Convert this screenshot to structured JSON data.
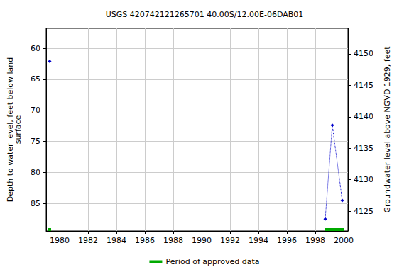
{
  "chart_data": {
    "type": "scatter",
    "title": "USGS 420742121265701 40.00S/12.00E-06DAB01",
    "x_label": null,
    "y_label": "Depth to water level, feet below land\nsurface",
    "y2_label": "Groundwater level above NGVD 1929, feet",
    "xlim": [
      1979.05,
      2000.3
    ],
    "xticks": [
      1980,
      1982,
      1984,
      1986,
      1988,
      1990,
      1992,
      1994,
      1996,
      1998,
      2000
    ],
    "ylim": [
      56.8,
      89.4
    ],
    "yticks": [
      60,
      65,
      70,
      75,
      80,
      85
    ],
    "y2lim": [
      4121.85,
      4154.05
    ],
    "y2ticks": [
      4125,
      4130,
      4135,
      4140,
      4145,
      4150
    ],
    "grid": true,
    "series": [
      {
        "color": "#0000cc",
        "marker": "diamond",
        "line_style": "dotted",
        "x": [
          1979.3
        ],
        "values": [
          62.1
        ]
      },
      {
        "color": "#0000cc",
        "marker": "diamond",
        "line_style": "dotted",
        "x": [
          1998.7,
          1999.2,
          1999.9
        ],
        "values": [
          87.5,
          72.4,
          84.5
        ]
      }
    ],
    "approved_periods": {
      "name": "Period of approved data",
      "color": "#00aa00",
      "ranges": [
        [
          1979.2,
          1979.4
        ],
        [
          1998.7,
          2000.0
        ]
      ]
    },
    "legend": "bottom"
  }
}
